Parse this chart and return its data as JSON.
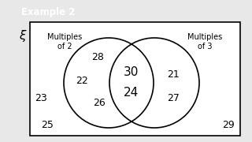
{
  "title_label": "Example 2",
  "title_bg": "#5b2d8e",
  "title_text_color": "#ffffff",
  "xi_label": "ξ",
  "left_circle_label": [
    "Multiples",
    "of 2"
  ],
  "right_circle_label": [
    "Multiples",
    "of 3"
  ],
  "left_only_numbers": [
    "28",
    "22",
    "26"
  ],
  "intersection_numbers": [
    "30",
    "24"
  ],
  "right_only_numbers": [
    "21",
    "27"
  ],
  "outside_numbers": [
    "23",
    "25",
    "29"
  ],
  "box_color": "#ffffff",
  "box_edge_color": "#000000",
  "circle_edge_color": "#000000",
  "bg_color": "#e8e8e8",
  "font_size_numbers": 9,
  "font_size_labels": 7,
  "font_size_title": 8.5,
  "font_size_xi": 11
}
